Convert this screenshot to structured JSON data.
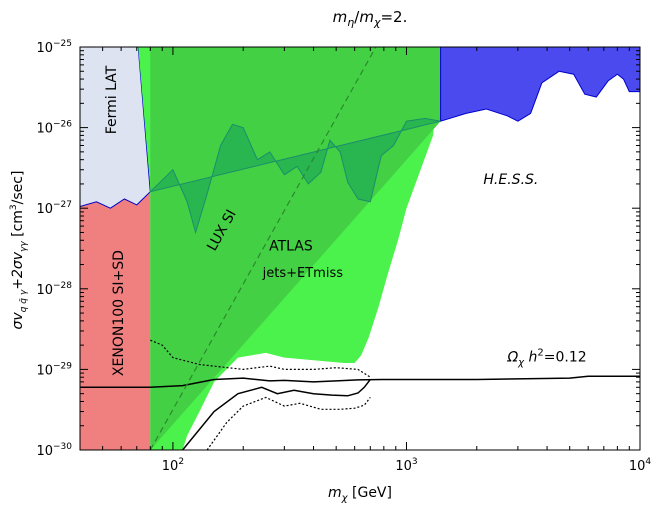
{
  "chart_data": {
    "type": "area",
    "title": "m_η / m_χ=2.",
    "title_parts": {
      "m1": "m",
      "sub1": "η",
      "slash": "/",
      "m2": "m",
      "sub2": "χ",
      "rest": "=2."
    },
    "xlabel": "m_χ [GeV]",
    "xlabel_parts": {
      "m": "m",
      "sub": "χ",
      "unit": " [GeV]"
    },
    "ylabel": "σv_{q q̄ γ}+2σv_{γγ} [cm^3/sec]",
    "ylabel_parts": {
      "a": "σv",
      "sub_a": "q q̄ γ",
      "b": "+2σv",
      "sub_b": "γγ",
      "c": " [cm",
      "sup": "3",
      "d": "/sec]"
    },
    "x_scale": "log",
    "y_scale": "log",
    "xlim": [
      40,
      10000
    ],
    "ylim": [
      1e-30,
      1e-25
    ],
    "x_ticks": [
      {
        "value": 100,
        "base": "10",
        "exp": "2"
      },
      {
        "value": 1000,
        "base": "10",
        "exp": "3"
      },
      {
        "value": 10000,
        "base": "10",
        "exp": "4"
      }
    ],
    "y_ticks": [
      {
        "value": 1e-25,
        "base": "10",
        "exp": "−25"
      },
      {
        "value": 1e-26,
        "base": "10",
        "exp": "−26"
      },
      {
        "value": 1e-27,
        "base": "10",
        "exp": "−27"
      },
      {
        "value": 1e-28,
        "base": "10",
        "exp": "−28"
      },
      {
        "value": 1e-29,
        "base": "10",
        "exp": "−29"
      },
      {
        "value": 1e-30,
        "base": "10",
        "exp": "−30"
      }
    ],
    "regions": [
      {
        "name": "XENON100 SI+SD",
        "color": "#f08080",
        "points": [
          [
            40,
            1e-30
          ],
          [
            80,
            1e-30
          ],
          [
            80,
            1.6e-27
          ],
          [
            70,
            1.1e-27
          ],
          [
            62,
            1.3e-27
          ],
          [
            54,
            1e-27
          ],
          [
            47,
            1.2e-27
          ],
          [
            40,
            1.05e-27
          ]
        ]
      },
      {
        "name": "Fermi LAT",
        "color": "#dde3f0",
        "points": [
          [
            40,
            1.05e-27
          ],
          [
            47,
            1.2e-27
          ],
          [
            54,
            1e-27
          ],
          [
            62,
            1.3e-27
          ],
          [
            70,
            1.1e-27
          ],
          [
            80,
            1.6e-27
          ],
          [
            71,
            1e-25
          ],
          [
            40,
            1e-25
          ]
        ]
      },
      {
        "name": "ATLAS jets+ETmiss",
        "color": "#4cf24c",
        "points": [
          [
            80,
            1e-30
          ],
          [
            80,
            1.8e-27
          ],
          [
            71,
            1e-25
          ],
          [
            1400,
            1e-25
          ],
          [
            1300,
            8e-27
          ],
          [
            1150,
            3e-27
          ],
          [
            1000,
            1e-27
          ],
          [
            920,
            4e-28
          ],
          [
            830,
            1.5e-28
          ],
          [
            760,
            6e-29
          ],
          [
            690,
            2.5e-29
          ],
          [
            640,
            1.5e-29
          ],
          [
            600,
            1.2e-29
          ],
          [
            540,
            1.2e-29
          ],
          [
            400,
            1.3e-29
          ],
          [
            300,
            1.4e-29
          ],
          [
            250,
            1.6e-29
          ],
          [
            190,
            1.4e-29
          ],
          [
            150,
            7e-30
          ],
          [
            130,
            3e-30
          ],
          [
            115,
            1.5e-30
          ],
          [
            110,
            1e-30
          ]
        ]
      },
      {
        "name": "LUX SI",
        "color": "#44d044",
        "points": [
          [
            80,
            1e-30
          ],
          [
            1400,
            1.2e-26
          ],
          [
            1400,
            1e-25
          ],
          [
            80,
            1e-25
          ]
        ]
      },
      {
        "name": "H.E.S.S.",
        "color": "#4a4aee",
        "points": [
          [
            1400,
            1.2e-26
          ],
          [
            1800,
            1.5e-26
          ],
          [
            2200,
            1.7e-26
          ],
          [
            2700,
            1.4e-26
          ],
          [
            3000,
            1.2e-26
          ],
          [
            3400,
            1.5e-26
          ],
          [
            3800,
            3.6e-26
          ],
          [
            4500,
            5e-26
          ],
          [
            5200,
            4.6e-26
          ],
          [
            5800,
            2.6e-26
          ],
          [
            6500,
            2.4e-26
          ],
          [
            7300,
            3.8e-26
          ],
          [
            8000,
            4.6e-26
          ],
          [
            8500,
            4e-26
          ],
          [
            9000,
            2.8e-26
          ],
          [
            10000,
            2.8e-26
          ],
          [
            10000,
            1e-25
          ],
          [
            1400,
            1e-25
          ]
        ]
      },
      {
        "name": "H.E.S.S. band",
        "color": "#1eaa55",
        "points": [
          [
            80,
            1.6e-27
          ],
          [
            100,
            3e-27
          ],
          [
            115,
            1.2e-27
          ],
          [
            125,
            5e-28
          ],
          [
            140,
            1.5e-27
          ],
          [
            160,
            6e-27
          ],
          [
            180,
            1.1e-26
          ],
          [
            200,
            1e-26
          ],
          [
            230,
            4e-27
          ],
          [
            260,
            5e-27
          ],
          [
            300,
            2.6e-27
          ],
          [
            340,
            3.3e-27
          ],
          [
            380,
            2e-27
          ],
          [
            430,
            2.8e-27
          ],
          [
            470,
            7e-27
          ],
          [
            520,
            5e-27
          ],
          [
            560,
            2.1e-27
          ],
          [
            620,
            1.3e-27
          ],
          [
            700,
            1.2e-27
          ],
          [
            780,
            4.5e-27
          ],
          [
            880,
            6e-27
          ],
          [
            1000,
            1.2e-26
          ],
          [
            1200,
            1.3e-26
          ],
          [
            1400,
            1.2e-26
          ]
        ]
      }
    ],
    "lines": [
      {
        "name": "relic",
        "label": "Ω_χ h^2=0.12",
        "label_parts": {
          "a": "Ω",
          "sub": "χ",
          "b": " h",
          "sup": "2",
          "c": "=0.12"
        },
        "color": "#000000",
        "style": "solid",
        "points": [
          [
            40,
            6e-30
          ],
          [
            80,
            6e-30
          ],
          [
            110,
            6.3e-30
          ],
          [
            150,
            7.5e-30
          ],
          [
            200,
            7.8e-30
          ],
          [
            260,
            7.2e-30
          ],
          [
            300,
            7.3e-30
          ],
          [
            400,
            7e-30
          ],
          [
            500,
            7.2e-30
          ],
          [
            620,
            7.4e-30
          ],
          [
            800,
            7.5e-30
          ],
          [
            1000,
            7.5e-30
          ],
          [
            2000,
            7.5e-30
          ],
          [
            5000,
            7.8e-30
          ],
          [
            6000,
            8.2e-30
          ],
          [
            10000,
            8.2e-30
          ]
        ]
      },
      {
        "name": "ATLAS lower solid",
        "color": "#000000",
        "style": "solid",
        "points": [
          [
            110,
            1e-30
          ],
          [
            150,
            3e-30
          ],
          [
            190,
            5e-30
          ],
          [
            240,
            6e-30
          ],
          [
            280,
            5e-30
          ],
          [
            330,
            5.5e-30
          ],
          [
            400,
            5e-30
          ],
          [
            480,
            4.8e-30
          ],
          [
            560,
            4.7e-30
          ],
          [
            620,
            5.1e-30
          ],
          [
            660,
            6e-30
          ],
          [
            700,
            7.5e-30
          ]
        ]
      },
      {
        "name": "ATLAS dotted upper",
        "color": "#000000",
        "style": "dotted",
        "points": [
          [
            80,
            2.3e-29
          ],
          [
            90,
            2e-29
          ],
          [
            100,
            1.4e-29
          ],
          [
            130,
            1.15e-29
          ],
          [
            200,
            1e-29
          ],
          [
            260,
            1.1e-29
          ],
          [
            300,
            1e-29
          ],
          [
            400,
            1e-29
          ],
          [
            500,
            1.05e-29
          ],
          [
            620,
            1e-29
          ],
          [
            700,
            8e-30
          ]
        ]
      },
      {
        "name": "ATLAS dotted lower",
        "color": "#000000",
        "style": "dotted",
        "points": [
          [
            140,
            1e-30
          ],
          [
            170,
            2.2e-30
          ],
          [
            200,
            3.5e-30
          ],
          [
            250,
            4.5e-30
          ],
          [
            300,
            3.5e-30
          ],
          [
            350,
            3.8e-30
          ],
          [
            430,
            3.2e-30
          ],
          [
            520,
            3.2e-30
          ],
          [
            600,
            3.3e-30
          ],
          [
            660,
            3.6e-30
          ],
          [
            700,
            4.5e-30
          ]
        ]
      },
      {
        "name": "LUX SI dashed",
        "color": "#2a8a2a",
        "style": "dashed",
        "points": [
          [
            80,
            1e-30
          ],
          [
            740,
            1e-25
          ]
        ]
      }
    ],
    "annotations": [
      {
        "text": "Fermi LAT",
        "x": 57,
        "y": 2.2e-26,
        "rotate": -90,
        "size": 14
      },
      {
        "text": "XENON100 SI+SD",
        "x": 61,
        "y": 5e-29,
        "rotate": -90,
        "size": 14
      },
      {
        "text": "LUX SI",
        "x": 168,
        "y": 5e-28,
        "rotate": -61,
        "size": 14
      },
      {
        "text": "ATLAS",
        "x": 320,
        "y": 3e-28,
        "rotate": 0,
        "size": 14
      },
      {
        "text": "jets+ETmiss",
        "x": 360,
        "y": 1.4e-28,
        "rotate": 0,
        "size": 13
      },
      {
        "text": "H.E.S.S.",
        "x": 2800,
        "y": 2e-27,
        "rotate": 0,
        "size": 14,
        "italic": true
      }
    ],
    "relic_label_pos": {
      "x": 4000,
      "y": 1.25e-29
    }
  }
}
